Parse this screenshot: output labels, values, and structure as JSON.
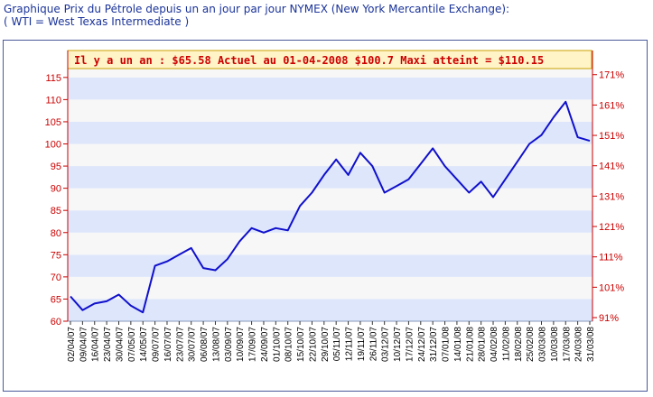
{
  "caption": {
    "line1": "Graphique Prix du Pétrole depuis un an jour par jour NYMEX (New York Mercantile Exchange):",
    "line2": "( WTI = West Texas Intermediate )"
  },
  "colors": {
    "caption": "#1a3399",
    "line": "#1010cc",
    "axis_red": "#cc0000",
    "band_blue": "#dde6fb",
    "band_white": "#f7f7f7",
    "title_bg": "#fff4c8"
  },
  "chart_data": {
    "type": "line",
    "title": "Il y a un an : $65.58 Actuel au 01-04-2008 $100.7 Maxi atteint = $110.15",
    "xlabel": "",
    "ylabel": "",
    "ylim": [
      60,
      117
    ],
    "yticks": [
      60,
      65,
      70,
      75,
      80,
      85,
      90,
      95,
      100,
      105,
      110,
      115
    ],
    "y2lim": [
      91,
      173
    ],
    "y2ticks": [
      "91%",
      "101%",
      "111%",
      "121%",
      "131%",
      "141%",
      "151%",
      "161%",
      "171%"
    ],
    "grid": "horizontal alternating bands",
    "legend": "none",
    "x_tick_labels": [
      "02/04/07",
      "09/04/07",
      "16/04/07",
      "23/04/07",
      "30/04/07",
      "07/05/07",
      "14/05/07",
      "09/07/07",
      "16/07/07",
      "23/07/07",
      "30/07/07",
      "06/08/07",
      "13/08/07",
      "03/09/07",
      "10/09/07",
      "17/09/07",
      "24/09/07",
      "01/10/07",
      "08/10/07",
      "15/10/07",
      "22/10/07",
      "29/10/07",
      "05/11/07",
      "12/11/07",
      "19/11/07",
      "26/11/07",
      "03/12/07",
      "10/12/07",
      "17/12/07",
      "24/12/07",
      "31/12/07",
      "07/01/08",
      "14/01/08",
      "21/01/08",
      "28/01/08",
      "04/02/08",
      "11/02/08",
      "18/02/08",
      "25/02/08",
      "03/03/08",
      "10/03/08",
      "17/03/08",
      "24/03/08",
      "31/03/08"
    ],
    "series": [
      {
        "name": "",
        "x": [
          "02/04/07",
          "09/04/07",
          "16/04/07",
          "23/04/07",
          "30/04/07",
          "07/05/07",
          "14/05/07",
          "09/07/07",
          "16/07/07",
          "23/07/07",
          "30/07/07",
          "06/08/07",
          "13/08/07",
          "03/09/07",
          "10/09/07",
          "17/09/07",
          "24/09/07",
          "01/10/07",
          "08/10/07",
          "15/10/07",
          "22/10/07",
          "29/10/07",
          "05/11/07",
          "12/11/07",
          "19/11/07",
          "26/11/07",
          "03/12/07",
          "10/12/07",
          "17/12/07",
          "24/12/07",
          "31/12/07",
          "07/01/08",
          "14/01/08",
          "21/01/08",
          "28/01/08",
          "04/02/08",
          "11/02/08",
          "18/02/08",
          "25/02/08",
          "03/03/08",
          "10/03/08",
          "17/03/08",
          "24/03/08",
          "31/03/08"
        ],
        "values": [
          65.6,
          62.5,
          64.0,
          64.5,
          66.0,
          63.5,
          62.0,
          72.5,
          73.5,
          75.0,
          76.5,
          72.0,
          71.5,
          74.0,
          78.0,
          81.0,
          80.0,
          81.0,
          80.5,
          86.0,
          89.0,
          93.0,
          96.5,
          93.0,
          98.0,
          95.0,
          89.0,
          90.5,
          92.0,
          95.5,
          99.0,
          95.0,
          92.0,
          89.0,
          91.5,
          88.0,
          92.0,
          96.0,
          100.0,
          102.0,
          106.0,
          109.5,
          101.5,
          100.7
        ]
      }
    ]
  }
}
